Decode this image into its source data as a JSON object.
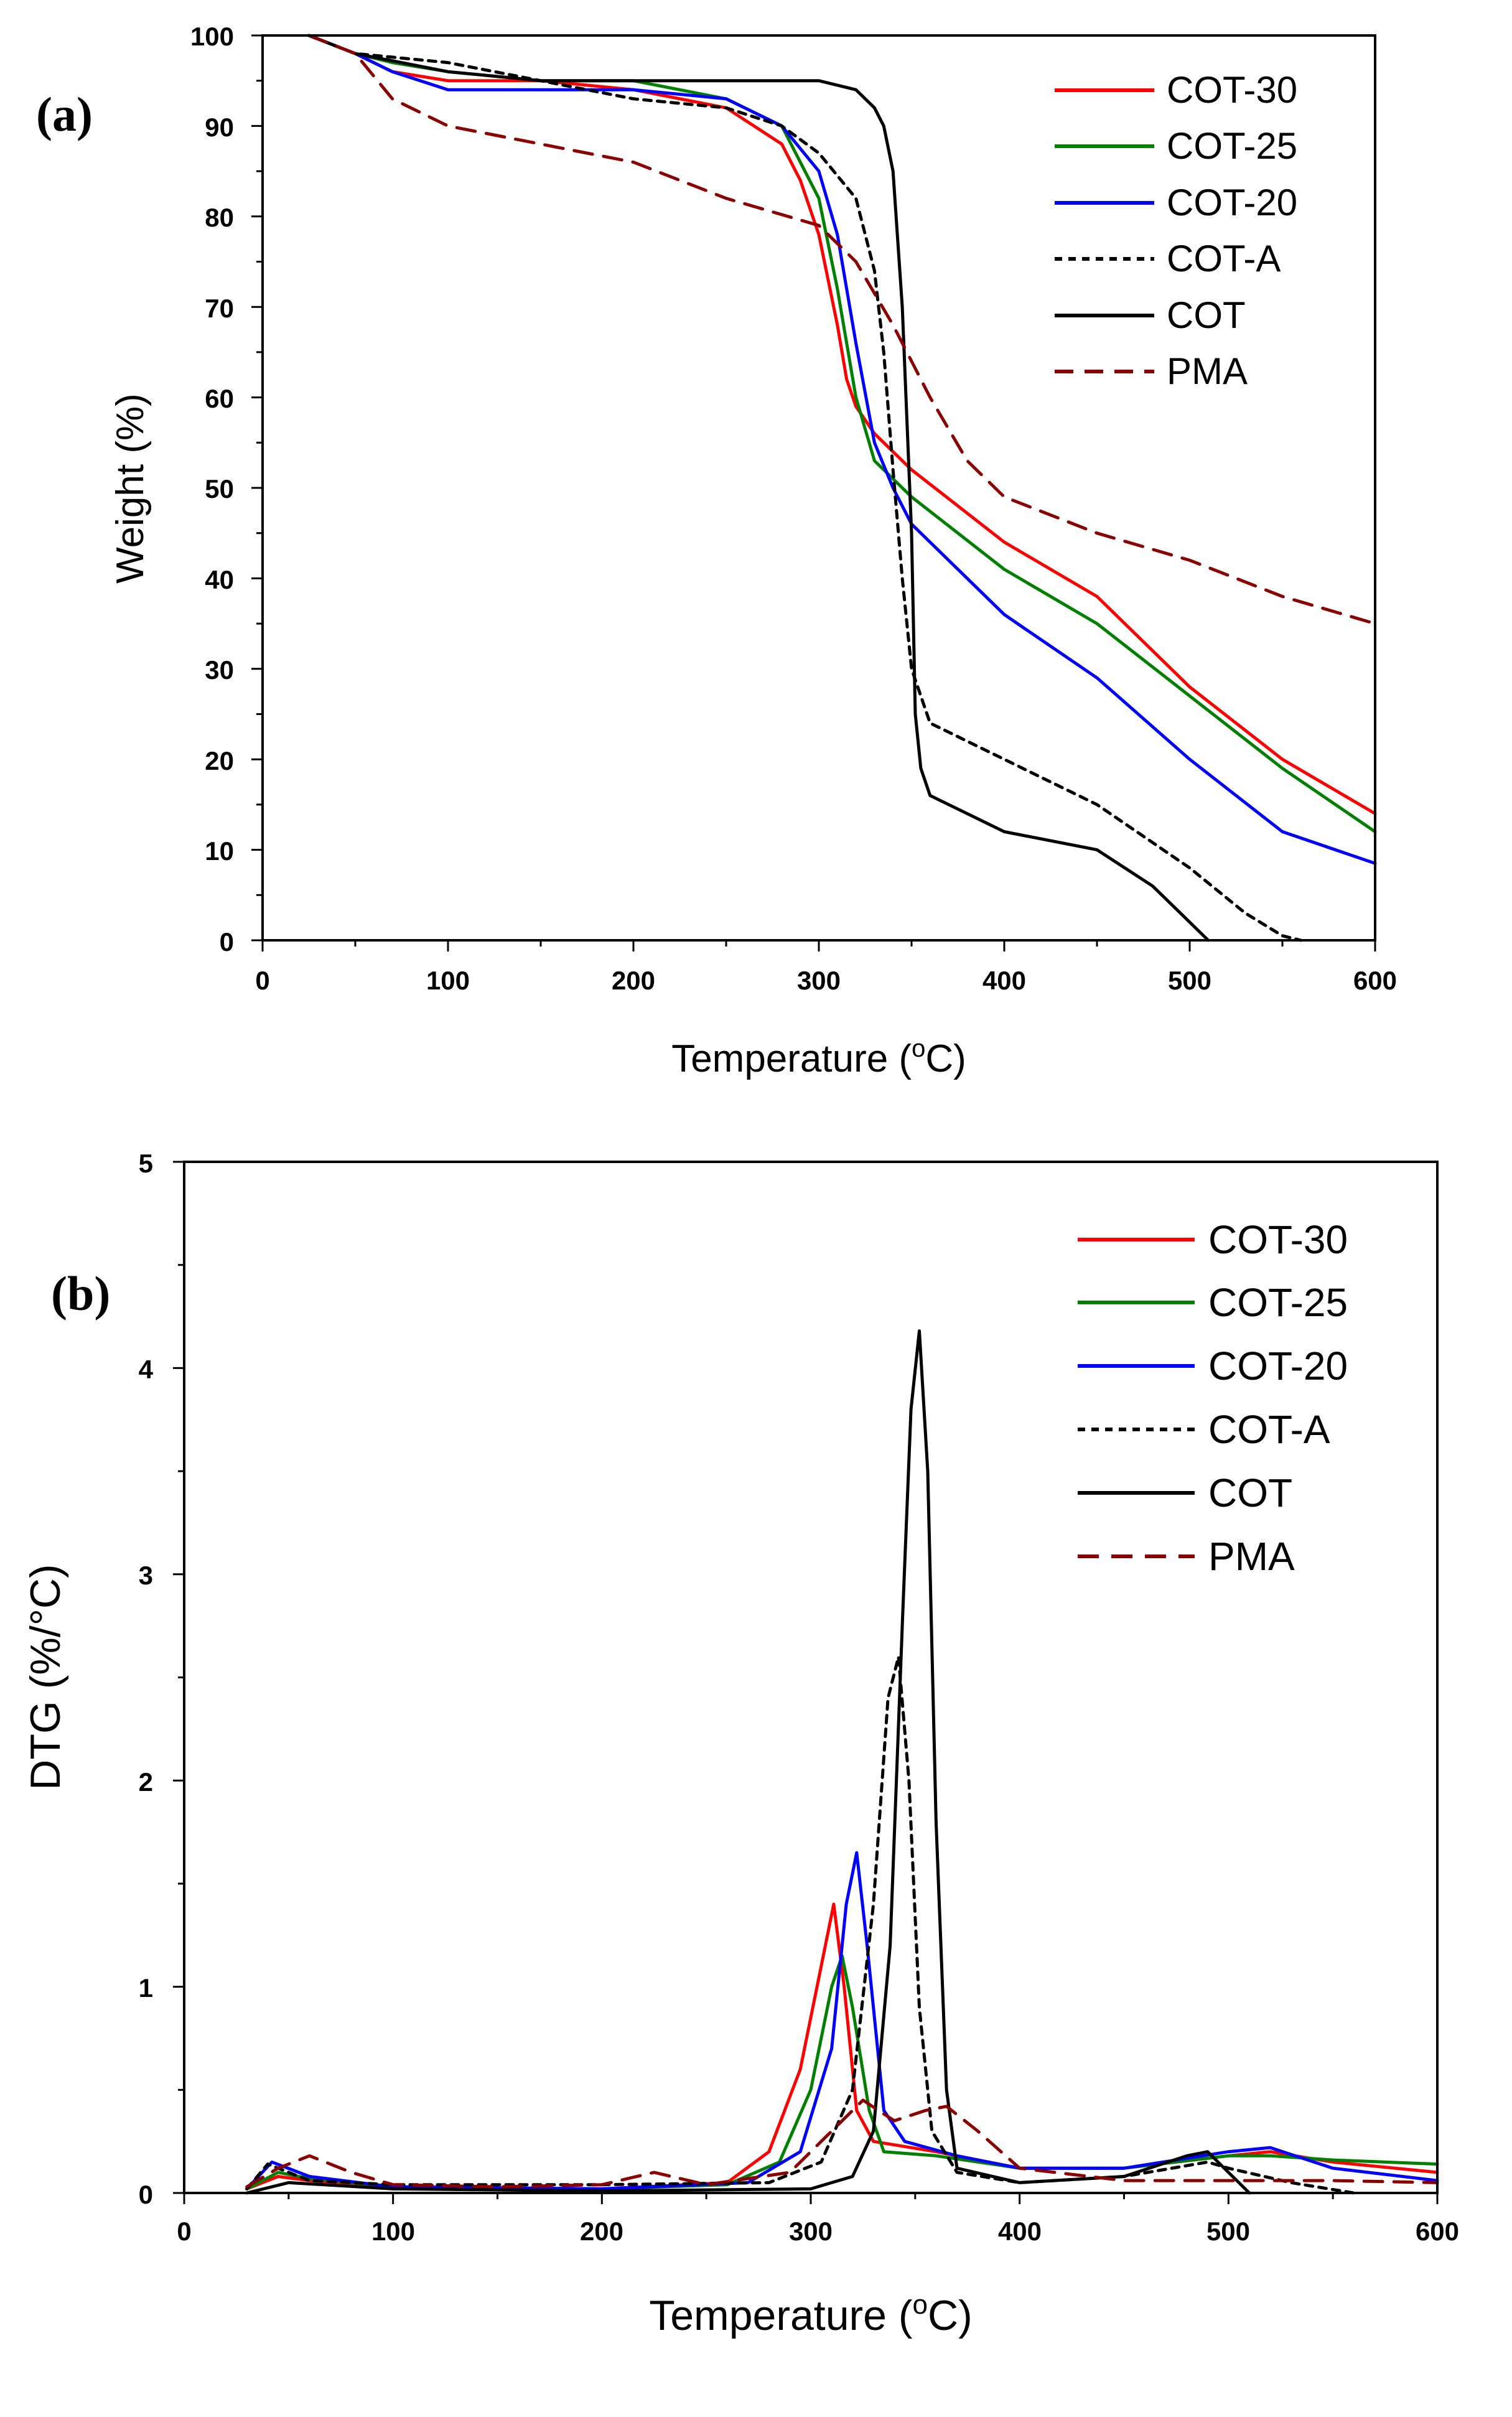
{
  "colors": {
    "cot30": "#ff0000",
    "cot25": "#008000",
    "cot20": "#0000ff",
    "cota": "#000000",
    "cot": "#000000",
    "pma": "#8b0000"
  },
  "chart_data": [
    {
      "type": "line",
      "panel_label": "(a)",
      "title": "",
      "xlabel_main": "Temperature (",
      "xlabel_sup": "o",
      "xlabel_tail": "C)",
      "ylabel": "Weight (%)",
      "xlim": [
        0,
        600
      ],
      "ylim": [
        0,
        100
      ],
      "x_ticks": [
        0,
        100,
        200,
        300,
        400,
        500,
        600
      ],
      "y_ticks": [
        0,
        10,
        20,
        30,
        40,
        50,
        60,
        70,
        80,
        90,
        100
      ],
      "x_tick_labels": [
        "0",
        "100",
        "200",
        "300",
        "400",
        "500",
        "600"
      ],
      "y_tick_labels": [
        "0",
        "10",
        "20",
        "30",
        "40",
        "50",
        "60",
        "70",
        "80",
        "90",
        "100"
      ],
      "legend_position": "top-right",
      "series": [
        {
          "name": "COT-30",
          "color": "#ff0000",
          "dash": "solid",
          "x": [
            25,
            50,
            70,
            100,
            150,
            200,
            250,
            280,
            290,
            300,
            310,
            315,
            320,
            330,
            350,
            400,
            450,
            500,
            550,
            600
          ],
          "y": [
            100,
            98,
            96,
            95,
            95,
            94,
            92,
            88,
            84,
            78,
            68,
            62,
            59,
            56,
            52,
            44,
            38,
            28,
            20,
            14
          ]
        },
        {
          "name": "COT-25",
          "color": "#008000",
          "dash": "solid",
          "x": [
            25,
            50,
            70,
            100,
            150,
            200,
            250,
            280,
            300,
            310,
            320,
            330,
            350,
            400,
            450,
            500,
            550,
            600
          ],
          "y": [
            100,
            98,
            97,
            96,
            95,
            95,
            93,
            90,
            82,
            72,
            60,
            53,
            49,
            41,
            35,
            27,
            19,
            12
          ]
        },
        {
          "name": "COT-20",
          "color": "#0000ff",
          "dash": "solid",
          "x": [
            25,
            50,
            70,
            100,
            150,
            200,
            250,
            280,
            300,
            310,
            320,
            330,
            340,
            350,
            400,
            450,
            500,
            550,
            600
          ],
          "y": [
            100,
            98,
            96,
            94,
            94,
            94,
            93,
            90,
            85,
            78,
            66,
            55,
            50,
            46,
            36,
            29,
            20,
            12,
            8.5
          ]
        },
        {
          "name": "COT-A",
          "color": "#000000",
          "dash": "dotted",
          "x": [
            25,
            50,
            100,
            150,
            200,
            250,
            280,
            300,
            320,
            330,
            335,
            340,
            345,
            350,
            360,
            400,
            450,
            500,
            530,
            550,
            560
          ],
          "y": [
            100,
            98,
            97,
            95,
            93,
            92,
            90,
            87,
            82,
            74,
            65,
            52,
            40,
            30,
            24,
            20,
            15,
            8,
            3,
            0.5,
            0
          ]
        },
        {
          "name": "COT",
          "color": "#000000",
          "dash": "solid",
          "x": [
            25,
            50,
            100,
            150,
            200,
            250,
            300,
            320,
            330,
            335,
            340,
            345,
            350,
            352,
            355,
            360,
            400,
            450,
            480,
            500,
            510
          ],
          "y": [
            100,
            98,
            96,
            95,
            95,
            95,
            95,
            94,
            92,
            90,
            85,
            70,
            45,
            25,
            19,
            16,
            12,
            10,
            6,
            2,
            0
          ]
        },
        {
          "name": "PMA",
          "color": "#8b0000",
          "dash": "dashed",
          "x": [
            25,
            50,
            70,
            100,
            150,
            200,
            250,
            300,
            320,
            340,
            360,
            380,
            400,
            450,
            500,
            550,
            600
          ],
          "y": [
            100,
            98,
            93,
            90,
            88,
            86,
            82,
            79,
            75,
            68,
            60,
            53,
            49,
            45,
            42,
            38,
            35
          ]
        }
      ]
    },
    {
      "type": "line",
      "panel_label": "(b)",
      "title": "",
      "xlabel_main": "Temperature (",
      "xlabel_sup": "o",
      "xlabel_tail": "C)",
      "ylabel": "DTG (%/°C)",
      "xlim": [
        0,
        600
      ],
      "ylim": [
        0,
        5
      ],
      "x_ticks": [
        0,
        100,
        200,
        300,
        400,
        500,
        600
      ],
      "y_ticks": [
        0,
        1,
        2,
        3,
        4,
        5
      ],
      "x_tick_labels": [
        "0",
        "100",
        "200",
        "300",
        "400",
        "500",
        "600"
      ],
      "y_tick_labels": [
        "0",
        "1",
        "2",
        "3",
        "4",
        "5"
      ],
      "legend_position": "top-right",
      "series": [
        {
          "name": "COT-30",
          "color": "#ff0000",
          "dash": "solid",
          "x": [
            30,
            45,
            60,
            100,
            200,
            260,
            280,
            295,
            305,
            311,
            316,
            322,
            330,
            360,
            400,
            450,
            500,
            520,
            550,
            600
          ],
          "y": [
            0.02,
            0.08,
            0.06,
            0.03,
            0.02,
            0.05,
            0.2,
            0.6,
            1.1,
            1.4,
            1.0,
            0.4,
            0.25,
            0.2,
            0.12,
            0.12,
            0.18,
            0.2,
            0.15,
            0.1
          ]
        },
        {
          "name": "COT-25",
          "color": "#008000",
          "dash": "solid",
          "x": [
            30,
            45,
            60,
            100,
            200,
            260,
            285,
            300,
            310,
            315,
            320,
            328,
            335,
            360,
            400,
            450,
            500,
            520,
            550,
            600
          ],
          "y": [
            0.02,
            0.1,
            0.07,
            0.03,
            0.02,
            0.04,
            0.15,
            0.5,
            1.0,
            1.15,
            0.9,
            0.4,
            0.2,
            0.18,
            0.12,
            0.12,
            0.18,
            0.18,
            0.16,
            0.14
          ]
        },
        {
          "name": "COT-20",
          "color": "#0000ff",
          "dash": "solid",
          "x": [
            30,
            42,
            60,
            100,
            200,
            270,
            295,
            310,
            317,
            322,
            327,
            335,
            345,
            370,
            400,
            450,
            500,
            520,
            550,
            600
          ],
          "y": [
            0.02,
            0.15,
            0.08,
            0.03,
            0.02,
            0.05,
            0.2,
            0.7,
            1.4,
            1.65,
            1.2,
            0.4,
            0.25,
            0.18,
            0.12,
            0.12,
            0.2,
            0.22,
            0.12,
            0.06
          ]
        },
        {
          "name": "COT-A",
          "color": "#000000",
          "dash": "dotted",
          "x": [
            30,
            40,
            60,
            100,
            200,
            280,
            305,
            320,
            330,
            337,
            342,
            347,
            352,
            358,
            370,
            400,
            450,
            490,
            500,
            530,
            560
          ],
          "y": [
            0.02,
            0.14,
            0.06,
            0.04,
            0.04,
            0.05,
            0.15,
            0.5,
            1.4,
            2.4,
            2.6,
            2.0,
            0.9,
            0.3,
            0.1,
            0.05,
            0.08,
            0.15,
            0.12,
            0.05,
            0.0
          ]
        },
        {
          "name": "COT",
          "color": "#000000",
          "dash": "solid",
          "x": [
            30,
            50,
            100,
            200,
            300,
            320,
            330,
            338,
            344,
            348,
            352,
            356,
            360,
            365,
            370,
            400,
            450,
            480,
            490,
            500,
            510
          ],
          "y": [
            0.0,
            0.05,
            0.02,
            0.01,
            0.02,
            0.08,
            0.3,
            1.2,
            2.8,
            3.8,
            4.18,
            3.5,
            1.8,
            0.5,
            0.12,
            0.05,
            0.08,
            0.18,
            0.2,
            0.1,
            0.0
          ]
        },
        {
          "name": "PMA",
          "color": "#8b0000",
          "dash": "dashed",
          "x": [
            30,
            45,
            60,
            80,
            100,
            150,
            200,
            225,
            250,
            290,
            310,
            325,
            340,
            355,
            365,
            380,
            400,
            450,
            500,
            550,
            600
          ],
          "y": [
            0.03,
            0.12,
            0.18,
            0.1,
            0.04,
            0.03,
            0.04,
            0.1,
            0.04,
            0.1,
            0.3,
            0.45,
            0.35,
            0.4,
            0.42,
            0.3,
            0.12,
            0.06,
            0.06,
            0.06,
            0.05
          ]
        }
      ]
    }
  ]
}
